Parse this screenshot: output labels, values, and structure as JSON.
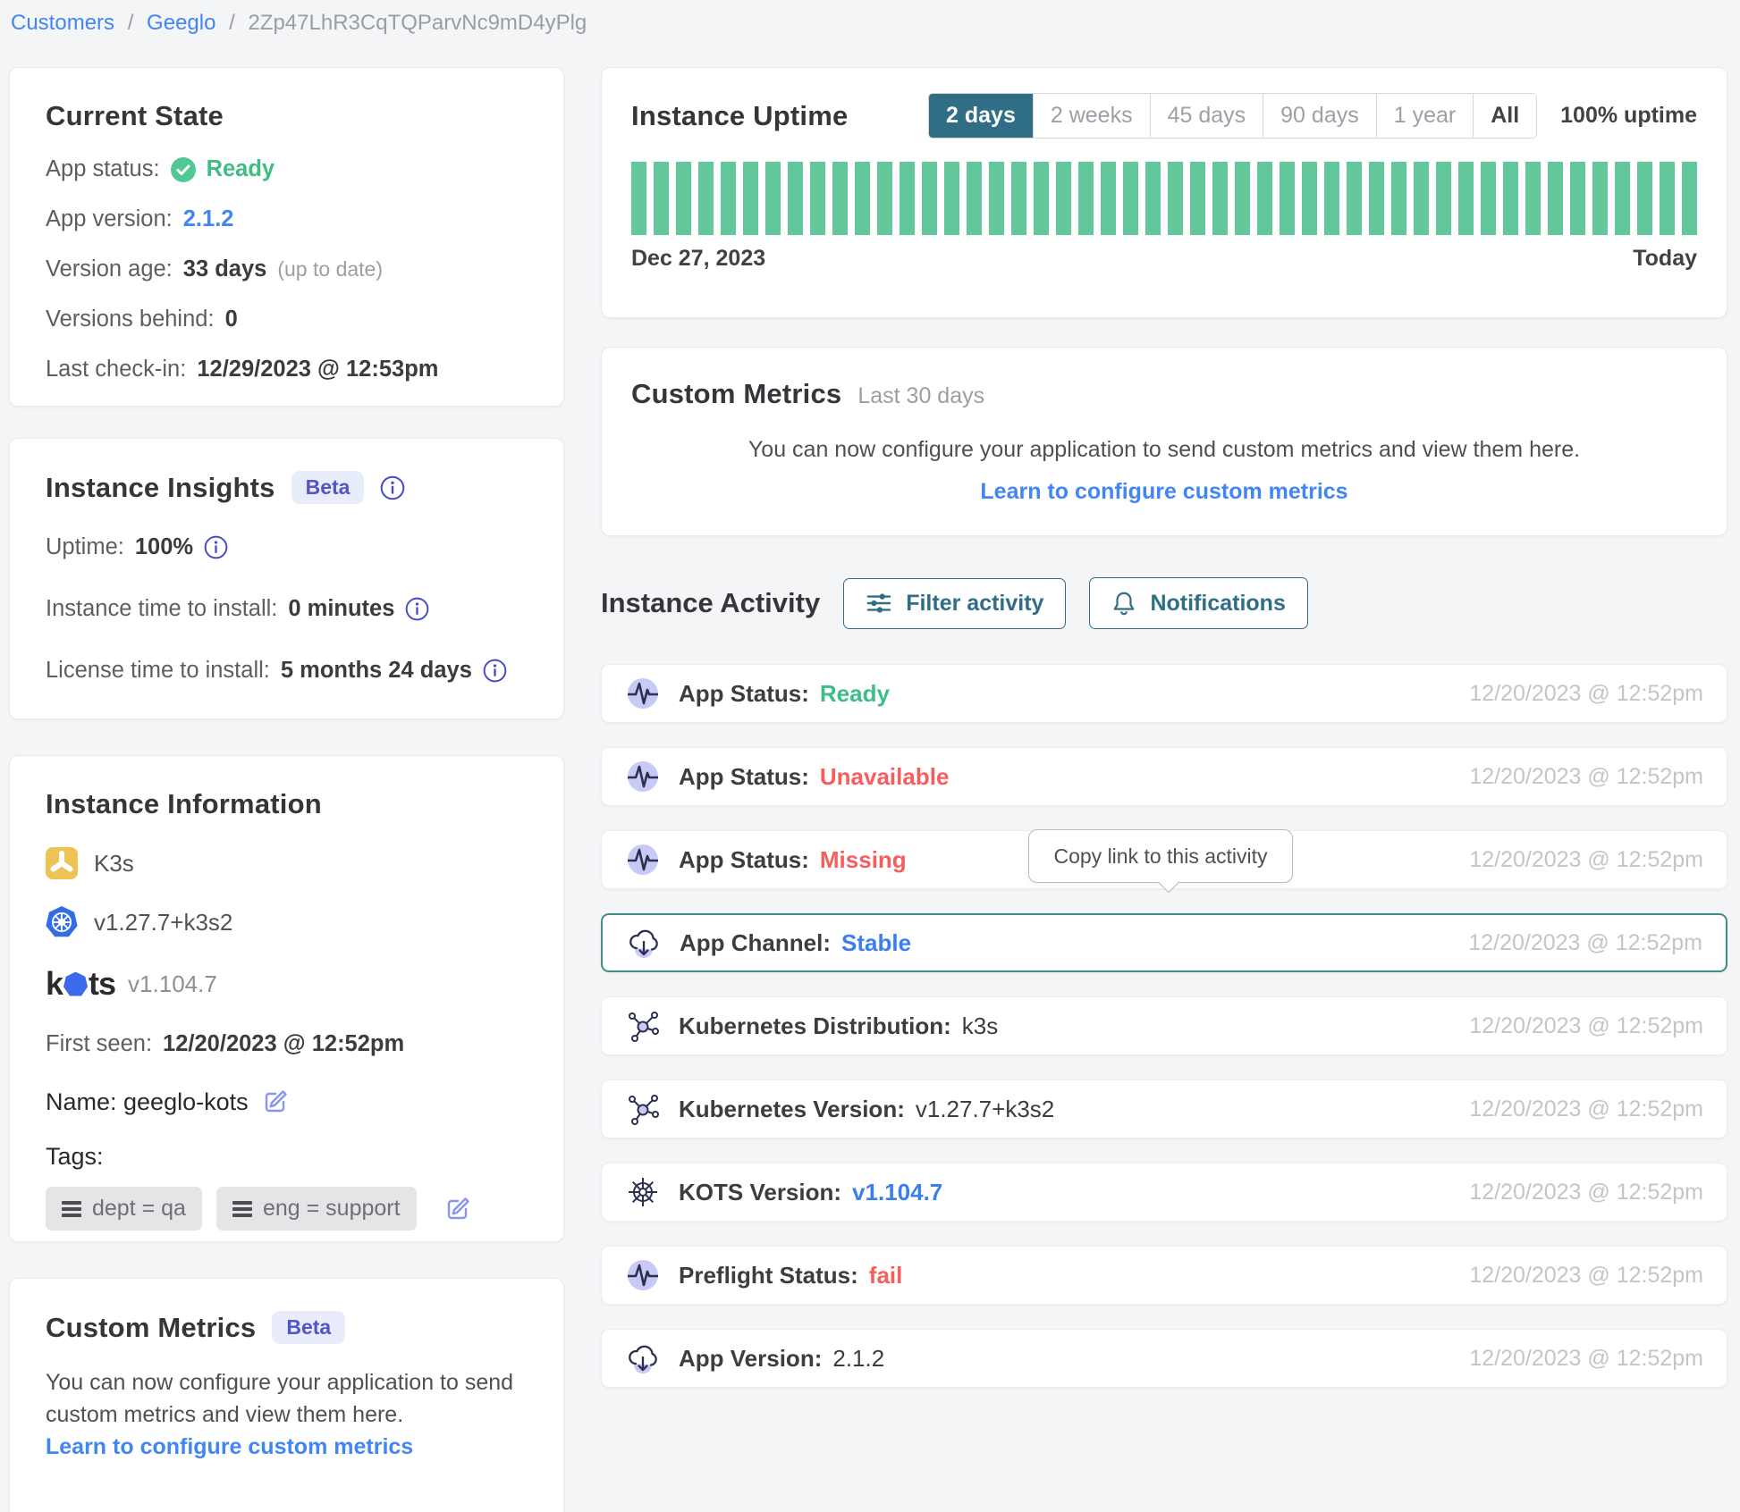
{
  "breadcrumb": {
    "customers": "Customers",
    "customer_name": "Geeglo",
    "instance_id": "2Zp47LhR3CqTQParvNc9mD4yPlg",
    "separator": "/"
  },
  "current_state": {
    "title": "Current State",
    "app_status_label": "App status:",
    "app_status_value": "Ready",
    "app_version_label": "App version:",
    "app_version_value": "2.1.2",
    "version_age_label": "Version age:",
    "version_age_value": "33 days",
    "version_age_note": "(up to date)",
    "versions_behind_label": "Versions behind:",
    "versions_behind_value": "0",
    "last_checkin_label": "Last check-in:",
    "last_checkin_value": "12/29/2023 @ 12:53pm"
  },
  "instance_insights": {
    "title": "Instance Insights",
    "beta_badge": "Beta",
    "uptime_label": "Uptime:",
    "uptime_value": "100%",
    "instance_time_label": "Instance time to install:",
    "instance_time_value": "0 minutes",
    "license_time_label": "License time to install:",
    "license_time_value": "5 months 24 days"
  },
  "instance_information": {
    "title": "Instance Information",
    "distribution_name": "K3s",
    "kubernetes_version": "v1.27.7+k3s2",
    "kots_wordmark": {
      "left": "k",
      "right": "ts"
    },
    "kots_version": "v1.104.7",
    "first_seen_label": "First seen:",
    "first_seen_value": "12/20/2023 @ 12:52pm",
    "name_label": "Name: geeglo-kots",
    "tags_label": "Tags:",
    "tags": [
      {
        "label": "dept = qa"
      },
      {
        "label": "eng = support"
      }
    ]
  },
  "custom_metrics_left": {
    "title": "Custom Metrics",
    "beta_badge": "Beta",
    "body": "You can now configure your application to send custom metrics and view them here.",
    "link": "Learn to configure custom metrics"
  },
  "uptime": {
    "title": "Instance Uptime",
    "ranges": [
      "2 days",
      "2 weeks",
      "45 days",
      "90 days",
      "1 year",
      "All"
    ],
    "selected_range": "2 days",
    "summary": "100% uptime",
    "start_label": "Dec 27, 2023",
    "end_label": "Today",
    "bar_count": 48,
    "bar_color": "#62c79b",
    "bar_values_percent_uptime": "all bars 100%"
  },
  "custom_metrics_right": {
    "title": "Custom Metrics",
    "period": "Last 30 days",
    "body": "You can now configure your application to send custom metrics and view them here.",
    "link": "Learn to configure custom metrics"
  },
  "activity": {
    "title": "Instance Activity",
    "filter_button": "Filter activity",
    "notifications_button": "Notifications",
    "tooltip": "Copy link to this activity",
    "items": [
      {
        "label": "App Status:",
        "value": "Ready",
        "value_color": "green",
        "timestamp": "12/20/2023 @ 12:52pm",
        "icon": "pulse",
        "selected": false
      },
      {
        "label": "App Status:",
        "value": "Unavailable",
        "value_color": "red",
        "timestamp": "12/20/2023 @ 12:52pm",
        "icon": "pulse",
        "selected": false
      },
      {
        "label": "App Status:",
        "value": "Missing",
        "value_color": "red",
        "timestamp": "12/20/2023 @ 12:52pm",
        "icon": "pulse",
        "selected": false
      },
      {
        "label": "App Channel:",
        "value": "Stable",
        "value_color": "blue",
        "timestamp": "12/20/2023 @ 12:52pm",
        "icon": "cloud-download",
        "selected": true
      },
      {
        "label": "Kubernetes Distribution:",
        "value": "k3s",
        "value_color": "dark",
        "timestamp": "12/20/2023 @ 12:52pm",
        "icon": "molecule",
        "selected": false
      },
      {
        "label": "Kubernetes Version:",
        "value": "v1.27.7+k3s2",
        "value_color": "dark",
        "timestamp": "12/20/2023 @ 12:52pm",
        "icon": "molecule",
        "selected": false
      },
      {
        "label": "KOTS Version:",
        "value": "v1.104.7",
        "value_color": "blue",
        "timestamp": "12/20/2023 @ 12:52pm",
        "icon": "helm-wheel",
        "selected": false
      },
      {
        "label": "Preflight Status:",
        "value": "fail",
        "value_color": "red",
        "timestamp": "12/20/2023 @ 12:52pm",
        "icon": "pulse",
        "selected": false
      },
      {
        "label": "App Version:",
        "value": "2.1.2",
        "value_color": "dark",
        "timestamp": "12/20/2023 @ 12:52pm",
        "icon": "cloud-download",
        "selected": false
      }
    ]
  },
  "colors": {
    "accent_teal": "#2f6e85",
    "selected_row_border": "#3f8e85",
    "uptime_bar_green": "#62c79b",
    "status_green": "#40bd86",
    "status_red": "#f65e5e",
    "link_blue": "#4285f4",
    "beta_purple": "#5254c8",
    "lavender_icon_bg": "#c7caf6"
  }
}
